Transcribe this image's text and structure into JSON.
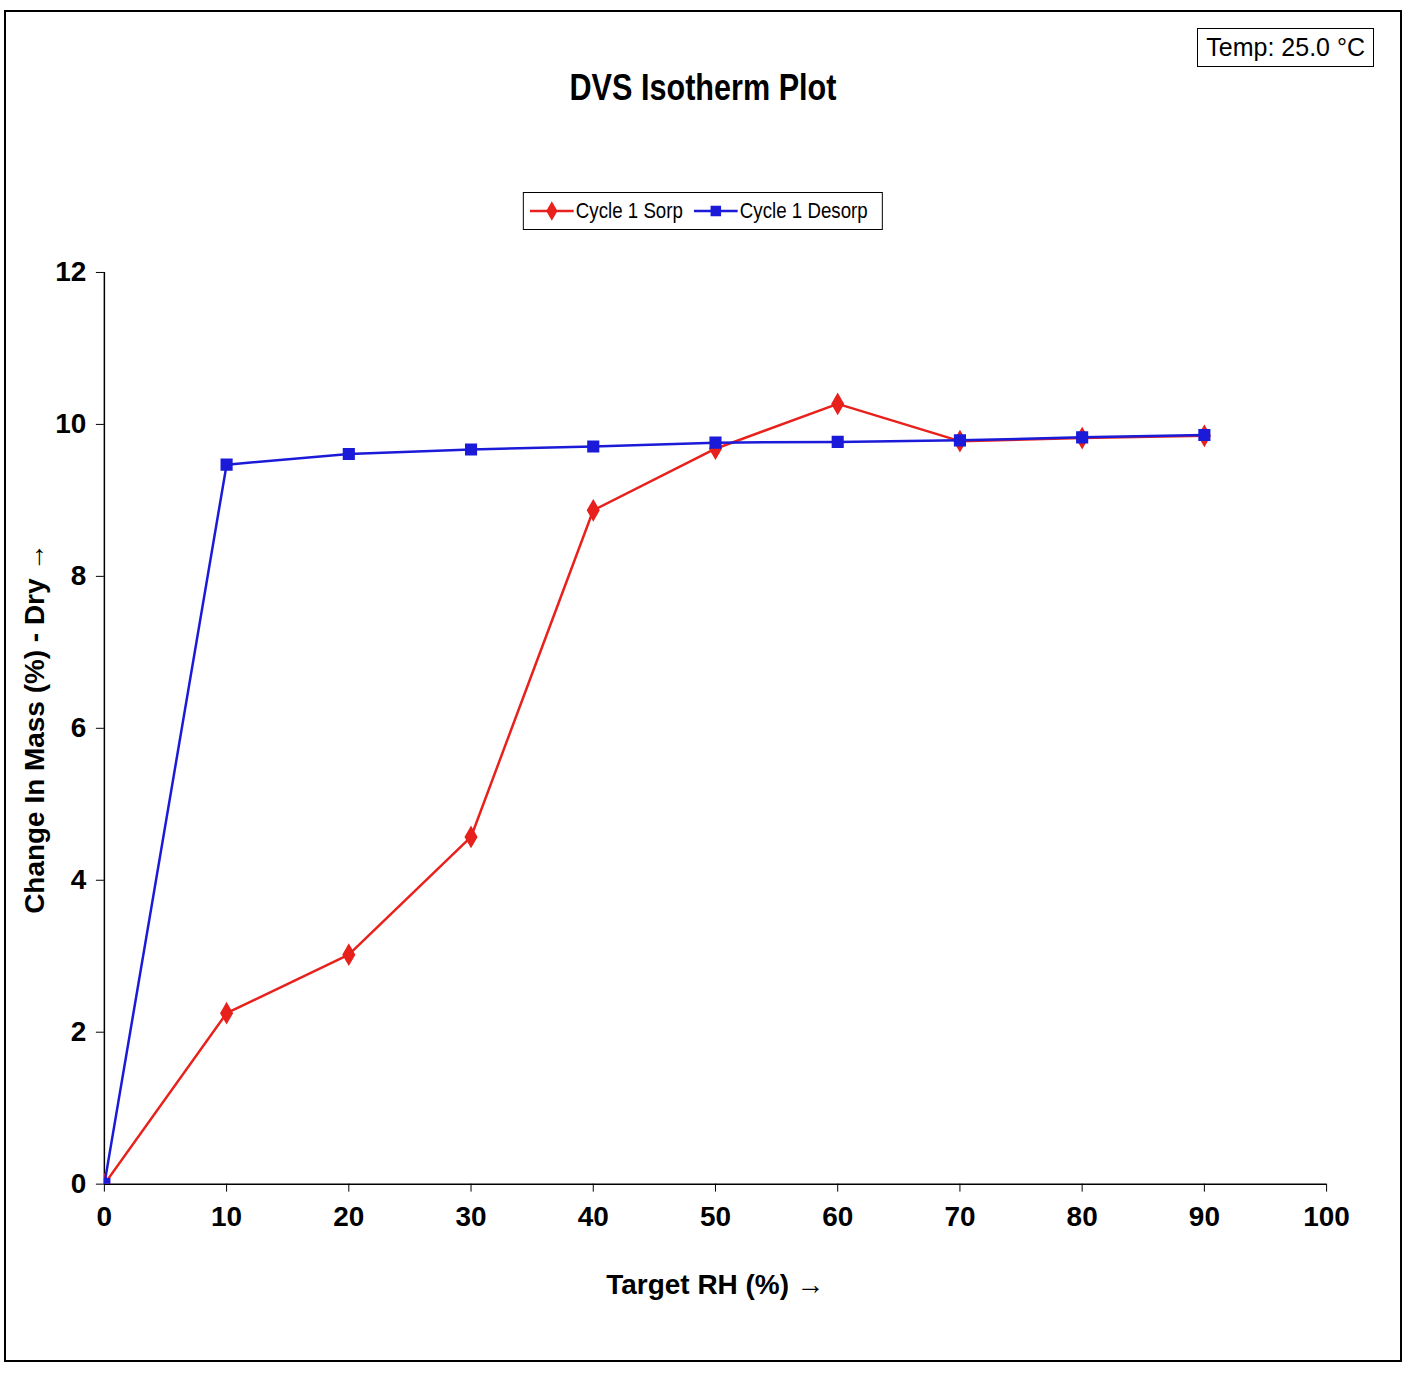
{
  "chart_data": {
    "type": "line",
    "title": "DVS Isotherm Plot",
    "annotation": "Temp:  25.0 °C",
    "x_label": "Target RH (%)",
    "y_label": "Change In Mass (%) - Dry",
    "series": [
      {
        "name": "Cycle 1 Sorp",
        "color": "#e8211c",
        "marker": "diamond",
        "x": [
          0,
          10,
          20,
          30,
          40,
          50,
          60,
          70,
          80,
          90
        ],
        "values": [
          0,
          2.25,
          3.02,
          4.57,
          8.87,
          9.68,
          10.27,
          9.78,
          9.82,
          9.85
        ]
      },
      {
        "name": "Cycle 1 Desorp",
        "color": "#1a1ad8",
        "marker": "square",
        "x": [
          90,
          80,
          70,
          60,
          50,
          40,
          30,
          20,
          10,
          0
        ],
        "values": [
          9.86,
          9.83,
          9.79,
          9.77,
          9.76,
          9.71,
          9.67,
          9.61,
          9.47,
          0
        ]
      }
    ],
    "xlim": [
      0,
      100
    ],
    "ylim": [
      0,
      12
    ],
    "xticks": [
      0,
      10,
      20,
      30,
      40,
      50,
      60,
      70,
      80,
      90,
      100
    ],
    "yticks": [
      0,
      2,
      4,
      6,
      8,
      10,
      12
    ],
    "grid": false,
    "legend": "top"
  }
}
